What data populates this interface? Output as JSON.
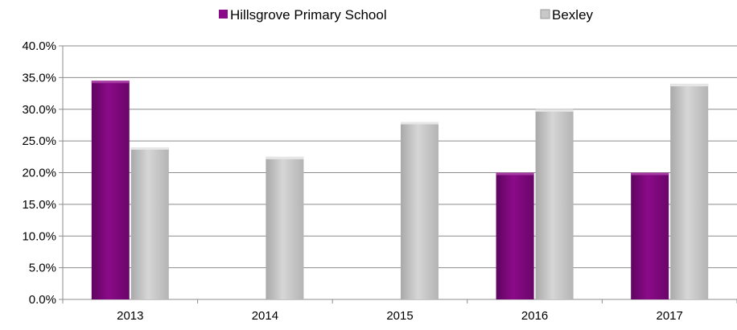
{
  "chart_data": {
    "type": "bar",
    "categories": [
      "2013",
      "2014",
      "2015",
      "2016",
      "2017"
    ],
    "series": [
      {
        "name": "Hillsgrove Primary School",
        "values": [
          34.5,
          0,
          0,
          20.0,
          20.0
        ],
        "color": "#8B0A88"
      },
      {
        "name": "Bexley",
        "values": [
          24.0,
          22.5,
          28.0,
          30.0,
          34.0
        ],
        "color": "#C8C8C8"
      }
    ],
    "y_ticks": [
      "0.0%",
      "5.0%",
      "10.0%",
      "15.0%",
      "20.0%",
      "25.0%",
      "30.0%",
      "35.0%",
      "40.0%"
    ],
    "ylim": [
      0,
      40
    ],
    "grid": true,
    "legend_position": "top"
  }
}
